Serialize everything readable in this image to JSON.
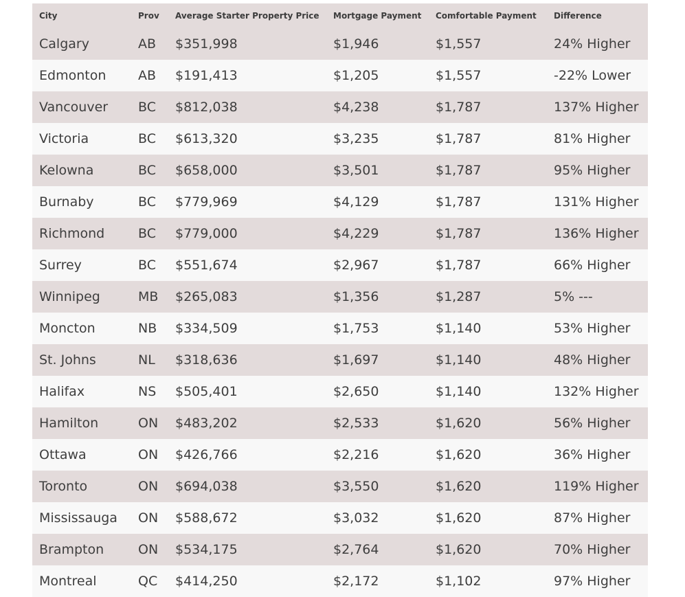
{
  "table": {
    "headers": {
      "city": "City",
      "prov": "Prov",
      "price": "Average Starter Property Price",
      "mortgage": "Mortgage Payment",
      "comfortable": "Comfortable Payment",
      "difference": "Difference"
    },
    "rows": [
      {
        "city": "Calgary",
        "prov": "AB",
        "price": "$351,998",
        "mortgage": "$1,946",
        "comfortable": "$1,557",
        "difference": "24% Higher"
      },
      {
        "city": "Edmonton",
        "prov": "AB",
        "price": "$191,413",
        "mortgage": "$1,205",
        "comfortable": "$1,557",
        "difference": "-22% Lower"
      },
      {
        "city": "Vancouver",
        "prov": "BC",
        "price": "$812,038",
        "mortgage": "$4,238",
        "comfortable": "$1,787",
        "difference": "137% Higher"
      },
      {
        "city": "Victoria",
        "prov": "BC",
        "price": "$613,320",
        "mortgage": "$3,235",
        "comfortable": "$1,787",
        "difference": "81% Higher"
      },
      {
        "city": "Kelowna",
        "prov": "BC",
        "price": "$658,000",
        "mortgage": "$3,501",
        "comfortable": "$1,787",
        "difference": "95% Higher"
      },
      {
        "city": "Burnaby",
        "prov": "BC",
        "price": "$779,969",
        "mortgage": "$4,129",
        "comfortable": "$1,787",
        "difference": "131% Higher"
      },
      {
        "city": "Richmond",
        "prov": "BC",
        "price": "$779,000",
        "mortgage": "$4,229",
        "comfortable": "$1,787",
        "difference": "136% Higher"
      },
      {
        "city": "Surrey",
        "prov": "BC",
        "price": "$551,674",
        "mortgage": "$2,967",
        "comfortable": "$1,787",
        "difference": "66% Higher"
      },
      {
        "city": "Winnipeg",
        "prov": "MB",
        "price": "$265,083",
        "mortgage": "$1,356",
        "comfortable": "$1,287",
        "difference": "5% ---"
      },
      {
        "city": "Moncton",
        "prov": "NB",
        "price": "$334,509",
        "mortgage": "$1,753",
        "comfortable": "$1,140",
        "difference": "53% Higher"
      },
      {
        "city": "St. Johns",
        "prov": "NL",
        "price": "$318,636",
        "mortgage": "$1,697",
        "comfortable": "$1,140",
        "difference": "48% Higher"
      },
      {
        "city": "Halifax",
        "prov": "NS",
        "price": "$505,401",
        "mortgage": "$2,650",
        "comfortable": "$1,140",
        "difference": "132% Higher"
      },
      {
        "city": "Hamilton",
        "prov": "ON",
        "price": "$483,202",
        "mortgage": "$2,533",
        "comfortable": "$1,620",
        "difference": "56% Higher"
      },
      {
        "city": "Ottawa",
        "prov": "ON",
        "price": "$426,766",
        "mortgage": "$2,216",
        "comfortable": "$1,620",
        "difference": "36% Higher"
      },
      {
        "city": "Toronto",
        "prov": "ON",
        "price": "$694,038",
        "mortgage": "$3,550",
        "comfortable": "$1,620",
        "difference": "119% Higher"
      },
      {
        "city": "Mississauga",
        "prov": "ON",
        "price": "$588,672",
        "mortgage": "$3,032",
        "comfortable": "$1,620",
        "difference": "87% Higher"
      },
      {
        "city": "Brampton",
        "prov": "ON",
        "price": "$534,175",
        "mortgage": "$2,764",
        "comfortable": "$1,620",
        "difference": "70% Higher"
      },
      {
        "city": "Montreal",
        "prov": "QC",
        "price": "$414,250",
        "mortgage": "$2,172",
        "comfortable": "$1,102",
        "difference": "97% Higher"
      }
    ]
  }
}
